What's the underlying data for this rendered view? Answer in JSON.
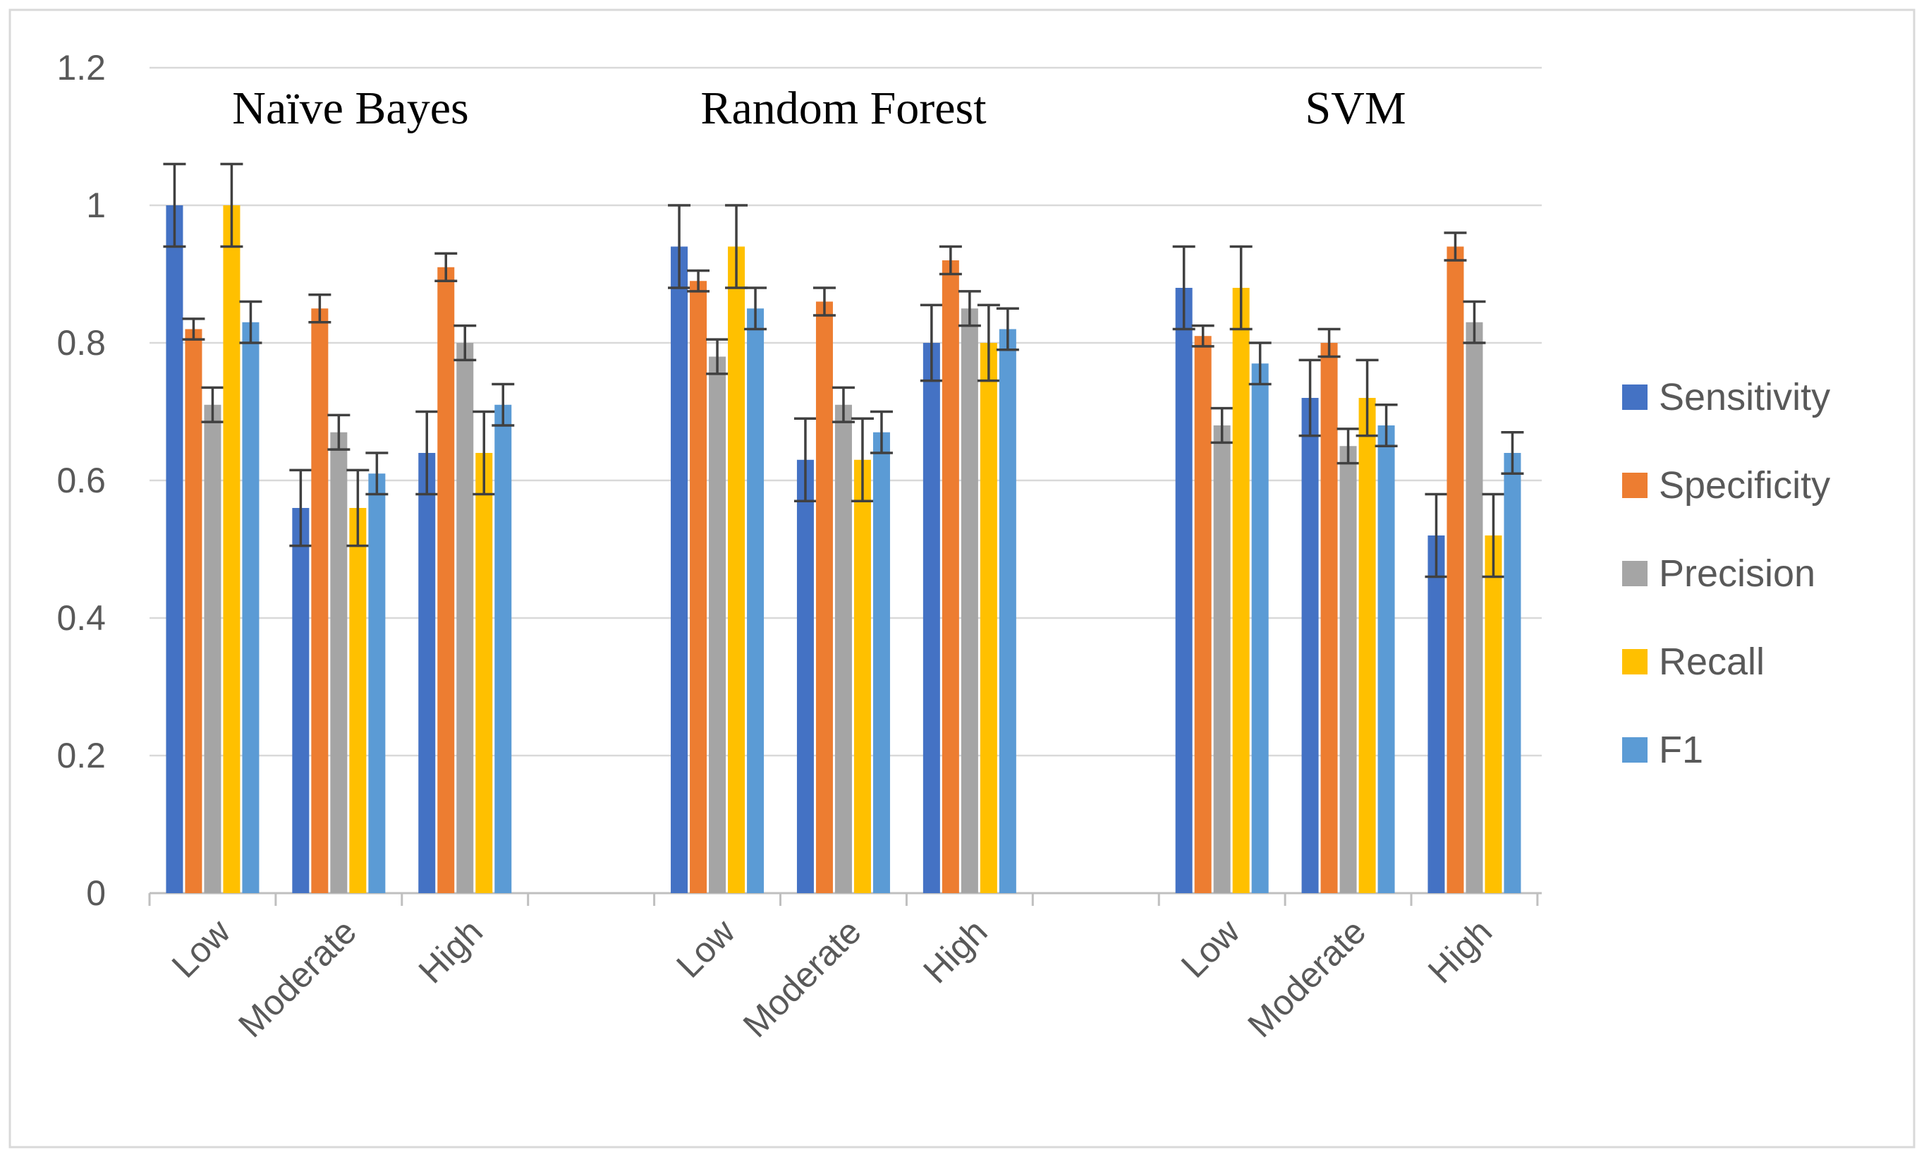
{
  "chart_data": {
    "type": "bar",
    "title": "",
    "xlabel": "",
    "ylabel": "",
    "ylim": [
      0,
      1.2
    ],
    "y_ticks": [
      "0",
      "0.2",
      "0.4",
      "0.6",
      "0.8",
      "1",
      "1.2"
    ],
    "legend_position": "right",
    "grid": true,
    "error_bars": true,
    "groups": [
      {
        "title": "Naïve Bayes",
        "categories": [
          "Low",
          "Moderate",
          "High"
        ],
        "series": [
          {
            "name": "Sensitivity",
            "values": [
              1.0,
              0.56,
              0.64
            ],
            "errors": [
              0.06,
              0.055,
              0.06
            ]
          },
          {
            "name": "Specificity",
            "values": [
              0.82,
              0.85,
              0.91
            ],
            "errors": [
              0.015,
              0.02,
              0.02
            ]
          },
          {
            "name": "Precision",
            "values": [
              0.71,
              0.67,
              0.8
            ],
            "errors": [
              0.025,
              0.025,
              0.025
            ]
          },
          {
            "name": "Recall",
            "values": [
              1.0,
              0.56,
              0.64
            ],
            "errors": [
              0.06,
              0.055,
              0.06
            ]
          },
          {
            "name": "F1",
            "values": [
              0.83,
              0.61,
              0.71
            ],
            "errors": [
              0.03,
              0.03,
              0.03
            ]
          }
        ]
      },
      {
        "title": "Random Forest",
        "categories": [
          "Low",
          "Moderate",
          "High"
        ],
        "series": [
          {
            "name": "Sensitivity",
            "values": [
              0.94,
              0.63,
              0.8
            ],
            "errors": [
              0.06,
              0.06,
              0.055
            ]
          },
          {
            "name": "Specificity",
            "values": [
              0.89,
              0.86,
              0.92
            ],
            "errors": [
              0.015,
              0.02,
              0.02
            ]
          },
          {
            "name": "Precision",
            "values": [
              0.78,
              0.71,
              0.85
            ],
            "errors": [
              0.025,
              0.025,
              0.025
            ]
          },
          {
            "name": "Recall",
            "values": [
              0.94,
              0.63,
              0.8
            ],
            "errors": [
              0.06,
              0.06,
              0.055
            ]
          },
          {
            "name": "F1",
            "values": [
              0.85,
              0.67,
              0.82
            ],
            "errors": [
              0.03,
              0.03,
              0.03
            ]
          }
        ]
      },
      {
        "title": "SVM",
        "categories": [
          "Low",
          "Moderate",
          "High"
        ],
        "series": [
          {
            "name": "Sensitivity",
            "values": [
              0.88,
              0.72,
              0.52
            ],
            "errors": [
              0.06,
              0.055,
              0.06
            ]
          },
          {
            "name": "Specificity",
            "values": [
              0.81,
              0.8,
              0.94
            ],
            "errors": [
              0.015,
              0.02,
              0.02
            ]
          },
          {
            "name": "Precision",
            "values": [
              0.68,
              0.65,
              0.83
            ],
            "errors": [
              0.025,
              0.025,
              0.03
            ]
          },
          {
            "name": "Recall",
            "values": [
              0.88,
              0.72,
              0.52
            ],
            "errors": [
              0.06,
              0.055,
              0.06
            ]
          },
          {
            "name": "F1",
            "values": [
              0.77,
              0.68,
              0.64
            ],
            "errors": [
              0.03,
              0.03,
              0.03
            ]
          }
        ]
      }
    ],
    "colors": {
      "Sensitivity": "#4472C4",
      "Specificity": "#ED7D31",
      "Precision": "#A5A5A5",
      "Recall": "#FFC000",
      "F1": "#5B9BD5"
    },
    "gridline_color": "#D9D9D9",
    "axis_color": "#BFBFBF",
    "error_bar_color": "#404040",
    "border_color": "#D9D9D9"
  }
}
